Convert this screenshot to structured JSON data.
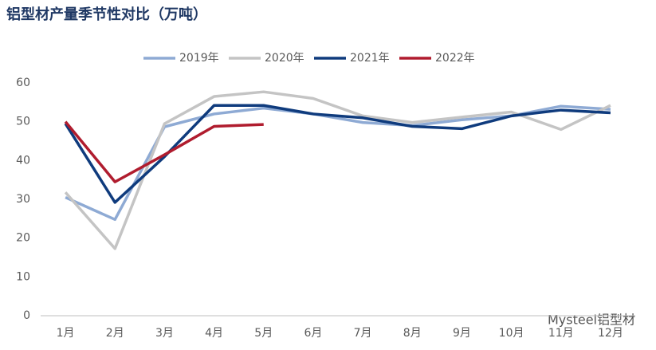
{
  "chart_data": {
    "type": "line",
    "title": "铝型材产量季节性对比（万吨）",
    "categories": [
      "1月",
      "2月",
      "3月",
      "4月",
      "5月",
      "6月",
      "7月",
      "8月",
      "9月",
      "10月",
      "11月",
      "12月"
    ],
    "series": [
      {
        "name": "2019年",
        "color": "#8eaad4",
        "values": [
          30.5,
          24.8,
          48.7,
          52,
          53.5,
          52,
          49.8,
          49,
          50.5,
          51.5,
          54,
          53.2
        ]
      },
      {
        "name": "2020年",
        "color": "#c4c4c4",
        "values": [
          31.8,
          17.3,
          49.5,
          56.5,
          57.7,
          56,
          51.5,
          49.8,
          51.2,
          52.5,
          48,
          54.2
        ]
      },
      {
        "name": "2021年",
        "color": "#0f3b7d",
        "values": [
          49.5,
          29.2,
          41,
          54.2,
          54.2,
          52,
          51,
          48.8,
          48.2,
          51.5,
          53,
          52.3
        ]
      },
      {
        "name": "2022年",
        "color": "#b01c2e",
        "values": [
          50,
          34.5,
          41.5,
          48.8,
          49.3,
          null,
          null,
          null,
          null,
          null,
          null,
          null
        ]
      }
    ],
    "ylim": [
      0,
      60
    ],
    "yticks": [
      0,
      10,
      20,
      30,
      40,
      50,
      60
    ],
    "grid": false,
    "legend": "top",
    "watermark": "Mysteel铝型材"
  }
}
